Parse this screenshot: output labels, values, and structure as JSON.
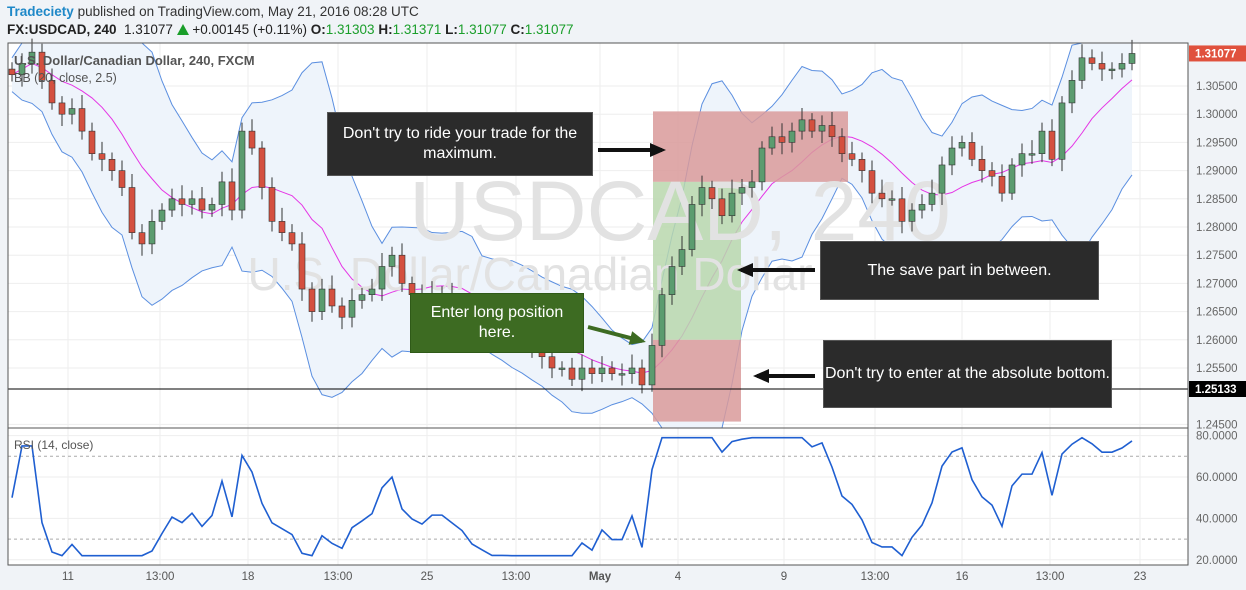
{
  "header": {
    "brand": "Tradeciety",
    "published": "published on TradingView.com, May 21, 2016 08:28 UTC",
    "symbol": "FX:USDCAD, 240",
    "last": "1.31077",
    "change": "+0.00145 (+0.11%)",
    "o_label": "O:",
    "o": "1.31303",
    "h_label": "H:",
    "h": "1.31371",
    "l_label": "L:",
    "l": "1.31077",
    "c_label": "C:",
    "c": "1.31077"
  },
  "legend": {
    "title": "U.S. Dollar/Canadian Dollar, 240, FXCM",
    "bb": "BB (20, close, 2.5)",
    "rsi": "RSI (14, close)"
  },
  "watermark": {
    "line1": "USDCAD, 240",
    "line2": "U.S. Dollar/Canadian Dollar"
  },
  "annotations": {
    "max": "Don't try to ride your trade for the maximum.",
    "save": "The save part in between.",
    "enter": "Enter long position here.",
    "bottom": "Don't try to enter at the absolute bottom."
  },
  "chart_data": [
    {
      "type": "candlestick",
      "title": "U.S. Dollar/Canadian Dollar, 240, FXCM",
      "ylim": [
        1.245,
        1.312
      ],
      "y_ticks": [
        "1.30500",
        "1.30000",
        "1.29500",
        "1.29000",
        "1.28500",
        "1.28000",
        "1.27500",
        "1.27000",
        "1.26500",
        "1.26000",
        "1.25500",
        "1.24500"
      ],
      "x_ticks": [
        "11",
        "13:00",
        "18",
        "13:00",
        "25",
        "13:00",
        "May",
        "4",
        "9",
        "13:00",
        "16",
        "13:00",
        "23"
      ],
      "last_price": "1.31077",
      "hline_price": "1.25133",
      "closes": [
        1.307,
        1.309,
        1.311,
        1.306,
        1.302,
        1.3,
        1.301,
        1.297,
        1.293,
        1.292,
        1.29,
        1.287,
        1.279,
        1.277,
        1.281,
        1.283,
        1.285,
        1.284,
        1.285,
        1.283,
        1.284,
        1.288,
        1.283,
        1.297,
        1.294,
        1.287,
        1.281,
        1.279,
        1.277,
        1.269,
        1.265,
        1.269,
        1.266,
        1.264,
        1.267,
        1.268,
        1.269,
        1.273,
        1.275,
        1.27,
        1.268,
        1.267,
        1.268,
        1.268,
        1.267,
        1.266,
        1.264,
        1.263,
        1.262,
        1.262,
        1.261,
        1.26,
        1.258,
        1.257,
        1.255,
        1.255,
        1.253,
        1.255,
        1.254,
        1.255,
        1.254,
        1.254,
        1.255,
        1.252,
        1.259,
        1.268,
        1.273,
        1.276,
        1.284,
        1.287,
        1.285,
        1.282,
        1.286,
        1.287,
        1.288,
        1.294,
        1.296,
        1.295,
        1.297,
        1.299,
        1.297,
        1.298,
        1.296,
        1.293,
        1.292,
        1.29,
        1.286,
        1.285,
        1.285,
        1.281,
        1.283,
        1.284,
        1.286,
        1.291,
        1.294,
        1.295,
        1.292,
        1.29,
        1.289,
        1.286,
        1.291,
        1.293,
        1.293,
        1.297,
        1.292,
        1.302,
        1.306,
        1.31,
        1.309,
        1.308,
        1.308,
        1.309,
        1.31077
      ],
      "indicator": "BB (20, close, 2.5)",
      "colors": {
        "up": "#5b9c6f",
        "down": "#d4503f",
        "bb_mid": "#e535e5",
        "bb_band": "#5b8fe0",
        "bb_fill": "#eef4fb"
      },
      "zones": [
        {
          "from": 1.288,
          "to": 1.3005,
          "color": "#d99a9a"
        },
        {
          "from": 1.26,
          "to": 1.288,
          "color": "#b9d7ad"
        },
        {
          "from": 1.2455,
          "to": 1.26,
          "color": "#d99a9a"
        }
      ]
    },
    {
      "type": "line",
      "title": "RSI (14, close)",
      "ylim": [
        18,
        82
      ],
      "y_ticks": [
        "80.0000",
        "60.0000",
        "40.0000",
        "20.0000"
      ],
      "levels": [
        70,
        30
      ],
      "color": "#1f5fd1"
    }
  ]
}
